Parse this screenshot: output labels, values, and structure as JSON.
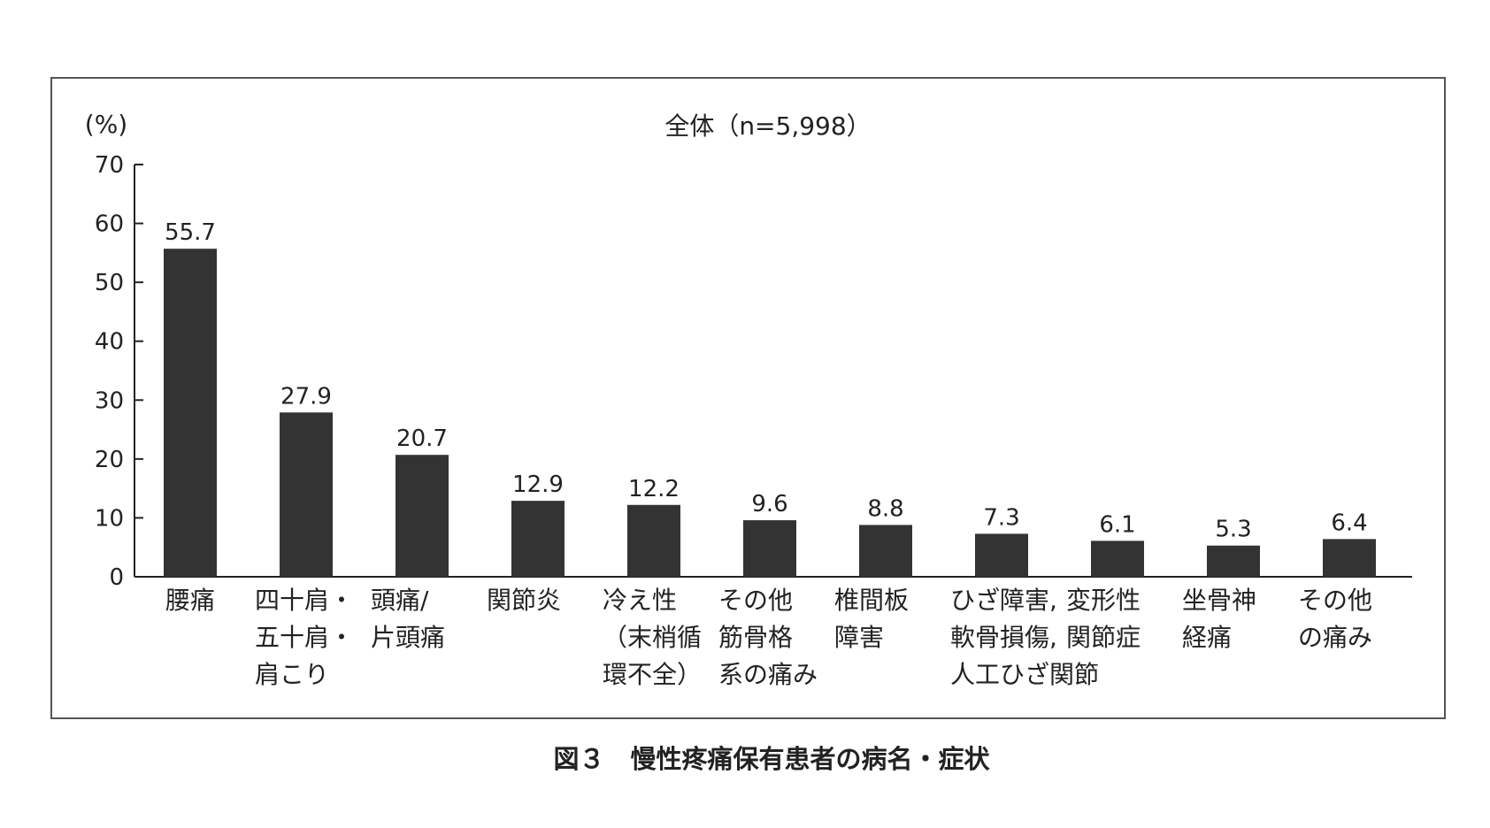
{
  "chart_data": {
    "type": "bar",
    "title": "全体（n=5,998）",
    "ylabel": "(%)",
    "xlabel": "",
    "ylim": [
      0,
      70
    ],
    "yticks": [
      0,
      10,
      20,
      30,
      40,
      50,
      60,
      70
    ],
    "grid": false,
    "legend": "none",
    "categories": [
      [
        "腰痛"
      ],
      [
        "四十肩・",
        "五十肩・",
        "肩こり"
      ],
      [
        "頭痛/",
        "片頭痛"
      ],
      [
        "関節炎"
      ],
      [
        "冷え性",
        "（末梢循",
        "環不全）"
      ],
      [
        "その他",
        "筋骨格",
        "系の痛み"
      ],
      [
        "椎間板",
        "障害"
      ],
      [
        "ひざ障害,",
        "軟骨損傷,",
        "人工ひざ関節"
      ],
      [
        "変形性",
        "関節症"
      ],
      [
        "坐骨神",
        "経痛"
      ],
      [
        "その他",
        "の痛み"
      ]
    ],
    "values": [
      55.7,
      27.9,
      20.7,
      12.9,
      12.2,
      9.6,
      8.8,
      7.3,
      6.1,
      5.3,
      6.4
    ],
    "value_labels": [
      "55.7",
      "27.9",
      "20.7",
      "12.9",
      "12.2",
      "9.6",
      "8.8",
      "7.3",
      "6.1",
      "5.3",
      "6.4"
    ],
    "bar_color": "#333333"
  },
  "caption": "図３　慢性疼痛保有患者の病名・症状"
}
